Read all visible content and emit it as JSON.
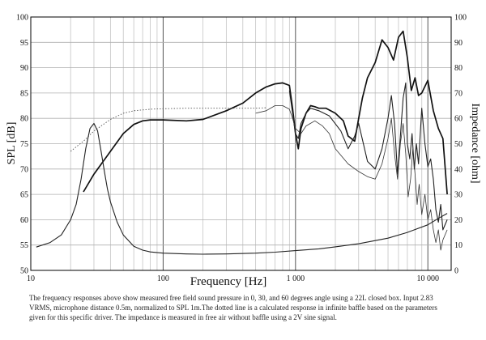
{
  "chart_data": {
    "type": "line",
    "x_scale": "log",
    "xlim": [
      10,
      15000
    ],
    "ylim_left": [
      50,
      100
    ],
    "ylim_right": [
      0,
      100
    ],
    "xlabel": "Frequency [Hz]",
    "ylabel": "SPL [dB]",
    "ylabel_right": "Impedance [ohm]",
    "x_tick_labels": [
      {
        "value": 10,
        "label": "10"
      },
      {
        "value": 100,
        "label": "100"
      },
      {
        "value": 1000,
        "label": "1 000"
      },
      {
        "value": 10000,
        "label": "10 000"
      }
    ],
    "y_ticks_left": [
      50,
      55,
      60,
      65,
      70,
      75,
      80,
      85,
      90,
      95,
      100
    ],
    "y_ticks_right": [
      0,
      10,
      20,
      30,
      40,
      50,
      60,
      70,
      80,
      90,
      100
    ],
    "series": [
      {
        "name": "0 degrees",
        "axis": "left",
        "style": "thick",
        "x": [
          25,
          30,
          40,
          50,
          60,
          70,
          80,
          100,
          150,
          200,
          300,
          400,
          500,
          600,
          700,
          800,
          900,
          950,
          1000,
          1050,
          1100,
          1200,
          1300,
          1400,
          1500,
          1700,
          2000,
          2300,
          2500,
          2800,
          3000,
          3200,
          3500,
          4000,
          4500,
          5000,
          5500,
          6000,
          6500,
          7000,
          7500,
          8000,
          8500,
          9000,
          10000,
          11000,
          12000,
          13000,
          14000
        ],
        "y": [
          65.5,
          69,
          73.5,
          77,
          78.8,
          79.5,
          79.7,
          79.7,
          79.5,
          79.8,
          81.5,
          83,
          85,
          86.2,
          86.8,
          87,
          86.5,
          82,
          77,
          74,
          78,
          81,
          82.5,
          82.3,
          82,
          82,
          81,
          79.5,
          76.5,
          75.5,
          80,
          84,
          88,
          91,
          95.5,
          94,
          91.5,
          96,
          97.2,
          92,
          85.5,
          88,
          84.5,
          85,
          87.5,
          81.5,
          78,
          76,
          65
        ]
      },
      {
        "name": "30 degrees",
        "axis": "left",
        "style": "medium",
        "x": [
          900,
          950,
          1000,
          1050,
          1100,
          1200,
          1300,
          1500,
          1800,
          2200,
          2500,
          2800,
          3000,
          3500,
          4000,
          4500,
          5000,
          5300,
          5600,
          5900,
          6200,
          6500,
          6800,
          7000,
          7300,
          7600,
          7900,
          8200,
          8500,
          9000,
          9500,
          10000,
          10500,
          11000,
          11500,
          12000,
          12500,
          13000,
          14000
        ],
        "y": [
          85.5,
          81,
          77,
          76,
          79,
          81,
          82,
          81.5,
          80.5,
          77.5,
          74,
          76.5,
          79,
          71.5,
          70,
          74,
          80,
          84.5,
          79,
          69,
          76.5,
          84,
          87,
          75,
          72,
          77,
          70,
          75,
          71,
          82,
          75,
          70.5,
          72,
          68,
          62,
          59.5,
          63,
          58,
          60
        ]
      },
      {
        "name": "60 degrees",
        "axis": "left",
        "style": "thin",
        "x": [
          500,
          600,
          700,
          800,
          900,
          950,
          1000,
          1100,
          1200,
          1400,
          1600,
          1800,
          2000,
          2500,
          3000,
          3500,
          4000,
          4500,
          5000,
          5300,
          5600,
          5900,
          6200,
          6500,
          6800,
          7100,
          7400,
          7700,
          8000,
          8300,
          8600,
          9000,
          9500,
          10000,
          10500,
          11000,
          11500,
          12000,
          12500,
          13000,
          14000
        ],
        "y": [
          81,
          81.5,
          82.5,
          82.5,
          81.8,
          80,
          78,
          77,
          78.5,
          79.5,
          78.5,
          77,
          74,
          71,
          69.5,
          68.5,
          68,
          71,
          76,
          80,
          73,
          68,
          75,
          79,
          73,
          64.5,
          68,
          74,
          69,
          63,
          67,
          61,
          65,
          60,
          62,
          58,
          55.5,
          58,
          54,
          56,
          58
        ]
      },
      {
        "name": "Calculated response (infinite baffle)",
        "axis": "left",
        "style": "dotted",
        "x": [
          20,
          25,
          30,
          40,
          50,
          60,
          80,
          100,
          150,
          200,
          300,
          400,
          500,
          600
        ],
        "y": [
          73.5,
          75.5,
          77.5,
          79.8,
          81,
          81.5,
          81.8,
          81.9,
          82,
          82,
          82,
          82,
          82,
          82.1
        ]
      },
      {
        "name": "Impedance",
        "axis": "right",
        "style": "medium",
        "x": [
          11,
          14,
          17,
          20,
          22,
          24,
          26,
          28,
          30,
          32,
          34,
          36,
          38,
          40,
          45,
          50,
          60,
          70,
          80,
          100,
          150,
          200,
          300,
          500,
          700,
          1000,
          1500,
          2000,
          3000,
          5000,
          7000,
          10000,
          12000,
          14000
        ],
        "y": [
          9.2,
          11,
          14,
          20,
          26,
          36,
          48,
          56,
          58,
          55,
          47,
          39,
          32,
          27,
          19,
          14,
          9.5,
          8,
          7.3,
          6.8,
          6.5,
          6.4,
          6.5,
          6.8,
          7.2,
          7.8,
          8.5,
          9.3,
          10.5,
          12.7,
          15,
          18,
          20.5,
          22.5
        ]
      }
    ]
  },
  "caption": "The frequency responses above show measured free field sound pressure in 0, 30, and 60 degrees angle using a 22L closed box. Input 2.83 VRMS, microphone distance 0.5m, normalized to SPL 1m.The dotted line is a calculated response in infinite baffle based on the parameters given for this specific driver. The impedance is measured in free air without baffle using a 2V sine signal."
}
